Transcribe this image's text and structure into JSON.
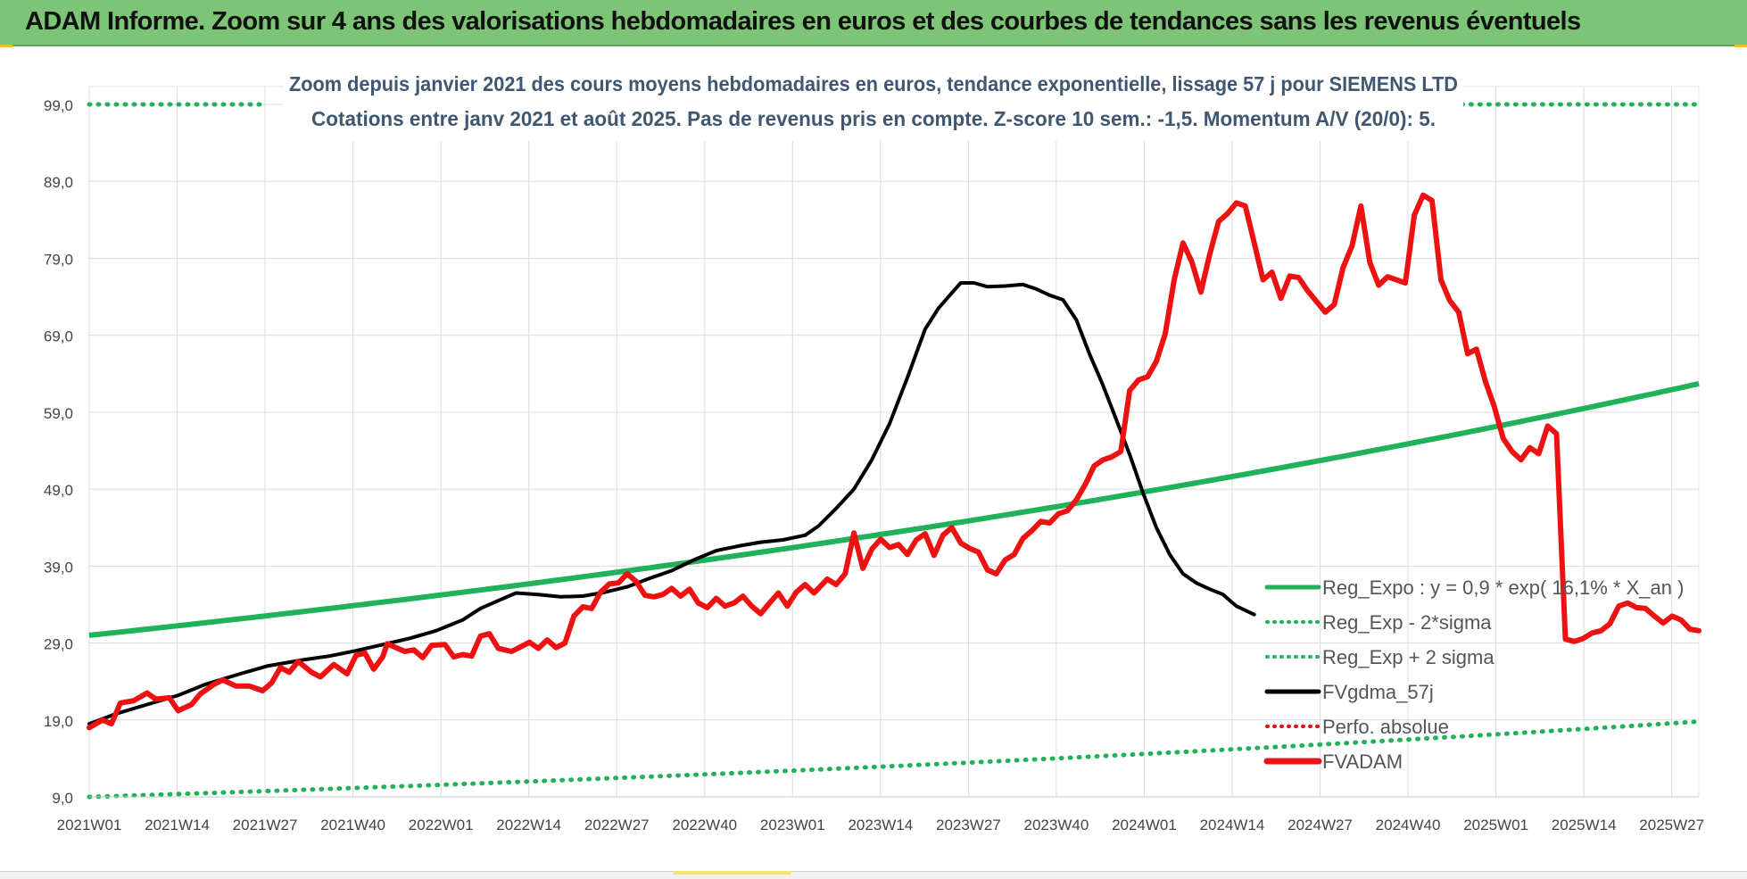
{
  "title_bar": {
    "text": "ADAM Informe. Zoom sur 4 ans des valorisations hebdomadaires en euros et des courbes de tendances sans les revenus éventuels"
  },
  "chart_data": {
    "type": "line",
    "subtitle_line1": "Zoom depuis janvier 2021 des cours moyens hebdomadaires en euros, tendance exponentielle, lissage 57 j pour SIEMENS LTD",
    "subtitle_line2": "Cotations entre janv 2021 et août 2025.  Pas de revenus pris en compte. Z-score 10 sem.: -1,5. Momentum A/V (20/0): 5.",
    "ylim": [
      9,
      99
    ],
    "y_ticks": [
      "99,0",
      "89,0",
      "79,0",
      "69,0",
      "59,0",
      "49,0",
      "39,0",
      "29,0",
      "19,0",
      "9,0"
    ],
    "x_tick_labels": [
      "2021W01",
      "2021W14",
      "2021W27",
      "2021W40",
      "2022W01",
      "2022W14",
      "2022W27",
      "2022W40",
      "2023W01",
      "2023W14",
      "2023W27",
      "2023W40",
      "2024W01",
      "2024W14",
      "2024W27",
      "2024W40",
      "2025W01",
      "2025W14",
      "2025W27"
    ],
    "n_weeks": 241,
    "grid": "on",
    "legend_position": "bottom-right",
    "legend": [
      {
        "label": "Reg_Expo : y = 0,9 * exp( 16,1% *  X_an )",
        "style": "solid",
        "color": "#1fb25a"
      },
      {
        "label": "Reg_Exp - 2*sigma",
        "style": "dotted",
        "color": "#1fb25a"
      },
      {
        "label": "Reg_Exp + 2 sigma",
        "style": "dotted",
        "color": "#1fb25a"
      },
      {
        "label": "FVgdma_57j",
        "style": "solid",
        "color": "#000000"
      },
      {
        "label": "Perfo. absolue",
        "style": "dotted",
        "color": "#e8101a"
      },
      {
        "label": "FVADAM",
        "style": "thick",
        "color": "#ee1111"
      }
    ],
    "series": [
      {
        "name": "Reg_Expo : y = 0,9 * exp( 16,1% *  X_an )",
        "color": "#1fb25a",
        "start": 30.0,
        "end": 62.7
      },
      {
        "name": "Reg_Exp - 2*sigma",
        "color": "#1fb25a",
        "start": 9.0,
        "end": 18.8
      },
      {
        "name": "Reg_Exp + 2 sigma",
        "color": "#1fb25a",
        "visible_segments": [
          [
            0,
            26
          ],
          [
            202,
            240
          ]
        ],
        "value": 99.0
      },
      {
        "name": "FVgdma_57j",
        "color": "#000000",
        "points": [
          [
            0,
            18.5
          ],
          [
            6,
            19.8
          ],
          [
            13,
            21.0
          ],
          [
            20,
            22.2
          ],
          [
            26,
            23.6
          ],
          [
            34,
            25.0
          ],
          [
            40,
            26.0
          ],
          [
            48,
            26.8
          ],
          [
            54,
            27.3
          ],
          [
            60,
            28.0
          ],
          [
            66,
            28.8
          ],
          [
            72,
            29.6
          ],
          [
            78,
            30.6
          ],
          [
            84,
            32.0
          ],
          [
            88,
            33.5
          ],
          [
            92,
            34.5
          ],
          [
            96,
            35.5
          ],
          [
            101,
            35.3
          ],
          [
            106,
            35.0
          ],
          [
            111,
            35.1
          ],
          [
            116,
            35.6
          ],
          [
            121,
            36.3
          ],
          [
            126,
            37.4
          ],
          [
            131,
            38.4
          ],
          [
            136,
            39.8
          ],
          [
            141,
            41.0
          ],
          [
            146,
            41.6
          ],
          [
            151,
            42.1
          ],
          [
            156,
            42.4
          ],
          [
            161,
            43.0
          ],
          [
            164,
            44.2
          ],
          [
            168,
            46.5
          ],
          [
            172,
            49.0
          ],
          [
            176,
            52.8
          ],
          [
            180,
            57.5
          ],
          [
            184,
            63.5
          ],
          [
            188,
            69.8
          ],
          [
            191,
            72.5
          ],
          [
            194,
            74.5
          ],
          [
            196,
            75.8
          ],
          [
            199,
            75.8
          ],
          [
            202,
            75.3
          ],
          [
            206,
            75.4
          ],
          [
            210,
            75.6
          ],
          [
            213,
            75.0
          ],
          [
            216,
            74.2
          ],
          [
            219,
            73.6
          ],
          [
            222,
            71.0
          ],
          [
            225,
            66.5
          ],
          [
            228,
            62.5
          ],
          [
            231,
            58.0
          ],
          [
            234,
            53.5
          ],
          [
            237,
            48.5
          ],
          [
            240,
            44.0
          ],
          [
            243,
            40.5
          ],
          [
            246,
            38.0
          ],
          [
            249,
            36.8
          ],
          [
            252,
            36.0
          ],
          [
            255,
            35.3
          ],
          [
            258,
            33.8
          ],
          [
            262,
            32.7
          ]
        ]
      },
      {
        "name": "Perfo. absolue",
        "color": "#e8101a"
      },
      {
        "name": "FVADAM",
        "color": "#ee1111",
        "points": [
          [
            0,
            18.0
          ],
          [
            3,
            19.0
          ],
          [
            5,
            18.5
          ],
          [
            7,
            21.2
          ],
          [
            10,
            21.5
          ],
          [
            13,
            22.5
          ],
          [
            15,
            21.7
          ],
          [
            18,
            21.9
          ],
          [
            20,
            20.2
          ],
          [
            23,
            21.0
          ],
          [
            25,
            22.4
          ],
          [
            28,
            23.6
          ],
          [
            30,
            24.2
          ],
          [
            33,
            23.4
          ],
          [
            36,
            23.4
          ],
          [
            39,
            22.8
          ],
          [
            41,
            23.8
          ],
          [
            43,
            25.8
          ],
          [
            45,
            25.2
          ],
          [
            47,
            26.6
          ],
          [
            50,
            25.2
          ],
          [
            52,
            24.6
          ],
          [
            55,
            26.2
          ],
          [
            58,
            25.0
          ],
          [
            60,
            27.4
          ],
          [
            62,
            27.7
          ],
          [
            64,
            25.6
          ],
          [
            66,
            27.2
          ],
          [
            67,
            28.9
          ],
          [
            69,
            28.4
          ],
          [
            71,
            27.9
          ],
          [
            73,
            28.1
          ],
          [
            75,
            27.1
          ],
          [
            77,
            28.7
          ],
          [
            80,
            28.8
          ],
          [
            82,
            27.2
          ],
          [
            84,
            27.5
          ],
          [
            86,
            27.3
          ],
          [
            88,
            29.9
          ],
          [
            90,
            30.2
          ],
          [
            92,
            28.3
          ],
          [
            95,
            27.9
          ],
          [
            97,
            28.5
          ],
          [
            99,
            29.1
          ],
          [
            101,
            28.3
          ],
          [
            103,
            29.4
          ],
          [
            105,
            28.4
          ],
          [
            107,
            29.0
          ],
          [
            109,
            32.5
          ],
          [
            111,
            33.7
          ],
          [
            113,
            33.5
          ],
          [
            115,
            35.6
          ],
          [
            117,
            36.7
          ],
          [
            119,
            36.8
          ],
          [
            121,
            38.0
          ],
          [
            123,
            37.0
          ],
          [
            125,
            35.2
          ],
          [
            127,
            35.0
          ],
          [
            129,
            35.3
          ],
          [
            131,
            36.1
          ],
          [
            133,
            35.1
          ],
          [
            135,
            36.0
          ],
          [
            137,
            34.2
          ],
          [
            139,
            33.6
          ],
          [
            141,
            34.8
          ],
          [
            143,
            33.8
          ],
          [
            145,
            34.2
          ],
          [
            147,
            35.1
          ],
          [
            149,
            33.8
          ],
          [
            151,
            32.8
          ],
          [
            153,
            34.2
          ],
          [
            155,
            35.5
          ],
          [
            157,
            33.8
          ],
          [
            159,
            35.6
          ],
          [
            161,
            36.6
          ],
          [
            163,
            35.5
          ],
          [
            166,
            37.3
          ],
          [
            168,
            36.6
          ],
          [
            170,
            38.0
          ],
          [
            172,
            43.3
          ],
          [
            174,
            38.7
          ],
          [
            176,
            41.2
          ],
          [
            178,
            42.5
          ],
          [
            180,
            41.4
          ],
          [
            182,
            41.8
          ],
          [
            184,
            40.5
          ],
          [
            186,
            42.4
          ],
          [
            188,
            43.2
          ],
          [
            190,
            40.4
          ],
          [
            192,
            43.0
          ],
          [
            194,
            44.0
          ],
          [
            196,
            42.0
          ],
          [
            198,
            41.3
          ],
          [
            200,
            40.8
          ],
          [
            202,
            38.5
          ],
          [
            204,
            38.0
          ],
          [
            206,
            39.8
          ],
          [
            208,
            40.5
          ],
          [
            210,
            42.6
          ],
          [
            212,
            43.6
          ],
          [
            214,
            44.8
          ],
          [
            216,
            44.6
          ],
          [
            218,
            45.8
          ],
          [
            220,
            46.2
          ],
          [
            222,
            47.6
          ],
          [
            224,
            49.6
          ],
          [
            226,
            52.0
          ],
          [
            228,
            52.8
          ],
          [
            230,
            53.2
          ],
          [
            232,
            53.9
          ],
          [
            234,
            61.8
          ],
          [
            236,
            63.2
          ],
          [
            238,
            63.6
          ],
          [
            240,
            65.6
          ],
          [
            242,
            69.2
          ],
          [
            244,
            76.2
          ],
          [
            246,
            81.0
          ],
          [
            248,
            78.5
          ],
          [
            250,
            74.6
          ],
          [
            252,
            79.5
          ],
          [
            254,
            83.8
          ],
          [
            256,
            84.8
          ],
          [
            258,
            86.2
          ],
          [
            260,
            85.8
          ],
          [
            262,
            81.0
          ],
          [
            264,
            76.2
          ],
          [
            266,
            77.2
          ],
          [
            268,
            73.8
          ],
          [
            270,
            76.7
          ],
          [
            272,
            76.5
          ],
          [
            274,
            74.8
          ],
          [
            276,
            73.4
          ],
          [
            278,
            72.0
          ],
          [
            280,
            73.0
          ],
          [
            282,
            77.8
          ],
          [
            284,
            80.6
          ],
          [
            286,
            85.8
          ],
          [
            288,
            78.5
          ],
          [
            290,
            75.5
          ],
          [
            292,
            76.6
          ],
          [
            294,
            76.2
          ],
          [
            296,
            75.8
          ],
          [
            298,
            84.6
          ],
          [
            300,
            87.2
          ],
          [
            302,
            86.5
          ],
          [
            304,
            76.2
          ],
          [
            306,
            73.5
          ],
          [
            308,
            72.0
          ],
          [
            310,
            66.6
          ],
          [
            312,
            67.2
          ],
          [
            314,
            63.0
          ],
          [
            316,
            59.7
          ],
          [
            318,
            55.6
          ],
          [
            320,
            53.9
          ],
          [
            322,
            52.8
          ],
          [
            324,
            54.4
          ],
          [
            326,
            53.6
          ],
          [
            328,
            57.2
          ],
          [
            330,
            56.2
          ],
          [
            332,
            29.5
          ],
          [
            334,
            29.2
          ],
          [
            336,
            29.6
          ],
          [
            338,
            30.3
          ],
          [
            340,
            30.6
          ],
          [
            342,
            31.5
          ],
          [
            344,
            33.8
          ],
          [
            346,
            34.2
          ],
          [
            348,
            33.6
          ],
          [
            350,
            33.5
          ],
          [
            352,
            32.5
          ],
          [
            354,
            31.6
          ],
          [
            356,
            32.5
          ],
          [
            358,
            32.0
          ],
          [
            360,
            30.8
          ],
          [
            362,
            30.6
          ]
        ]
      }
    ]
  }
}
